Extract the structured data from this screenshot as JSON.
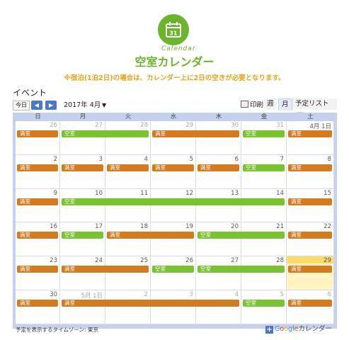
{
  "header": {
    "logo_number": "31",
    "logo_script": "Calendar",
    "title": "空室カレンダー",
    "note": "※宿泊(1泊2日)の場合は、カレンダー上に2日の空きが必要となります。"
  },
  "calendar": {
    "heading": "イベント",
    "today_label": "今日",
    "prev_label": "◀",
    "next_label": "▶",
    "month_label": "2017年 4月",
    "month_caret": "▼",
    "print_label": "印刷",
    "view_tabs": [
      "週",
      "月",
      "予定リスト"
    ],
    "list_caret": "▼",
    "weekdays": [
      "日",
      "月",
      "火",
      "水",
      "木",
      "金",
      "土"
    ],
    "weeks": [
      {
        "days": [
          "26",
          "27",
          "28",
          "29",
          "30",
          "31",
          "4月 1日"
        ],
        "other": [
          true,
          true,
          true,
          true,
          true,
          true,
          false
        ],
        "events": [
          {
            "label": "満室",
            "start": 0,
            "span": 1,
            "color": "orange"
          },
          {
            "label": "空室",
            "start": 1,
            "span": 2,
            "color": "green"
          },
          {
            "label": "満室",
            "start": 3,
            "span": 2,
            "color": "orange"
          },
          {
            "label": "空室",
            "start": 5,
            "span": 1,
            "color": "green"
          },
          {
            "label": "満室",
            "start": 6,
            "span": 1,
            "color": "orange"
          }
        ]
      },
      {
        "days": [
          "2",
          "3",
          "4",
          "5",
          "6",
          "7",
          "8"
        ],
        "other": [
          false,
          false,
          false,
          false,
          false,
          false,
          false
        ],
        "events": [
          {
            "label": "満室",
            "start": 0,
            "span": 1,
            "color": "orange"
          },
          {
            "label": "満室",
            "start": 1,
            "span": 1,
            "color": "orange"
          },
          {
            "label": "満室",
            "start": 2,
            "span": 1,
            "color": "orange"
          },
          {
            "label": "満室",
            "start": 3,
            "span": 1,
            "color": "orange"
          },
          {
            "label": "満室",
            "start": 4,
            "span": 1,
            "color": "orange"
          },
          {
            "label": "空室",
            "start": 5,
            "span": 1,
            "color": "green"
          },
          {
            "label": "満室",
            "start": 6,
            "span": 1,
            "color": "orange"
          }
        ]
      },
      {
        "days": [
          "9",
          "10",
          "11",
          "12",
          "13",
          "14",
          "15"
        ],
        "other": [
          false,
          false,
          false,
          false,
          false,
          false,
          false
        ],
        "events": [
          {
            "label": "満室",
            "start": 0,
            "span": 1,
            "color": "orange"
          },
          {
            "label": "空室",
            "start": 1,
            "span": 5,
            "color": "green"
          },
          {
            "label": "満室",
            "start": 6,
            "span": 1,
            "color": "orange"
          }
        ]
      },
      {
        "days": [
          "16",
          "17",
          "18",
          "19",
          "20",
          "21",
          "22"
        ],
        "other": [
          false,
          false,
          false,
          false,
          false,
          false,
          false
        ],
        "events": [
          {
            "label": "満室",
            "start": 0,
            "span": 1,
            "color": "orange"
          },
          {
            "label": "空室",
            "start": 1,
            "span": 1,
            "color": "green"
          },
          {
            "label": "満室",
            "start": 2,
            "span": 2,
            "color": "orange"
          },
          {
            "label": "空室",
            "start": 4,
            "span": 2,
            "color": "green"
          },
          {
            "label": "満室",
            "start": 6,
            "span": 1,
            "color": "orange"
          }
        ]
      },
      {
        "days": [
          "23",
          "24",
          "25",
          "26",
          "27",
          "28",
          "29"
        ],
        "other": [
          false,
          false,
          false,
          false,
          false,
          false,
          false
        ],
        "today": 6,
        "events": [
          {
            "label": "満室",
            "start": 0,
            "span": 1,
            "color": "orange"
          },
          {
            "label": "満室",
            "start": 1,
            "span": 2,
            "color": "orange"
          },
          {
            "label": "空室",
            "start": 3,
            "span": 1,
            "color": "green"
          },
          {
            "label": "空室",
            "start": 4,
            "span": 2,
            "color": "green"
          },
          {
            "label": "満室",
            "start": 6,
            "span": 1,
            "color": "orange"
          }
        ]
      },
      {
        "days": [
          "30",
          "5月 1日",
          "2",
          "3",
          "4",
          "5",
          "6"
        ],
        "other": [
          false,
          true,
          true,
          true,
          true,
          true,
          true
        ],
        "events": [
          {
            "label": "満室",
            "start": 0,
            "span": 1,
            "color": "orange"
          },
          {
            "label": "満室",
            "start": 1,
            "span": 4,
            "color": "orange"
          },
          {
            "label": "空室",
            "start": 5,
            "span": 1,
            "color": "green"
          },
          {
            "label": "満室",
            "start": 6,
            "span": 1,
            "color": "orange"
          }
        ]
      }
    ],
    "timezone_note": "予定を表示するタイムゾーン: 東京",
    "gcal_plus": "+",
    "gcal_brand": [
      "G",
      "o",
      "o",
      "g",
      "l",
      "e"
    ],
    "gcal_label": "カレンダー"
  },
  "colors": {
    "orange": "#d47a1f",
    "green": "#7ac231",
    "accent": "#6cb42d",
    "note": "#e8a21a",
    "frame": "#c3d0ee",
    "today": "#fff4c2"
  }
}
